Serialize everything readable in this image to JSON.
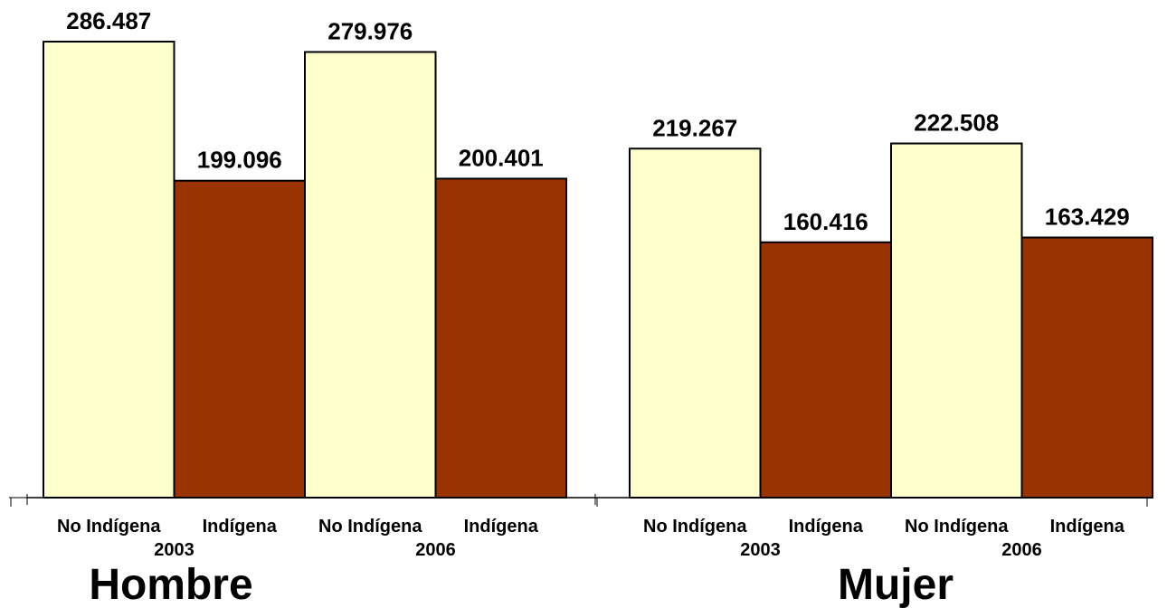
{
  "chart_data": {
    "type": "bar",
    "title": "",
    "xlabel": "",
    "ylabel": "",
    "ylim": [
      0,
      300000
    ],
    "grid": false,
    "legend": "none",
    "colors": {
      "No Indígena": "#ffffcc",
      "Indígena": "#993300",
      "outline": "#000000"
    },
    "groups": [
      {
        "label": "Hombre",
        "years": [
          {
            "year": "2003",
            "bars": [
              {
                "category": "No Indígena",
                "value": 286487,
                "label": "286.487"
              },
              {
                "category": "Indígena",
                "value": 199096,
                "label": "199.096"
              }
            ]
          },
          {
            "year": "2006",
            "bars": [
              {
                "category": "No Indígena",
                "value": 279976,
                "label": "279.976"
              },
              {
                "category": "Indígena",
                "value": 200401,
                "label": "200.401"
              }
            ]
          }
        ]
      },
      {
        "label": "Mujer",
        "years": [
          {
            "year": "2003",
            "bars": [
              {
                "category": "No Indígena",
                "value": 219267,
                "label": "219.267"
              },
              {
                "category": "Indígena",
                "value": 160416,
                "label": "160.416"
              }
            ]
          },
          {
            "year": "2006",
            "bars": [
              {
                "category": "No Indígena",
                "value": 222508,
                "label": "222.508"
              },
              {
                "category": "Indígena",
                "value": 163429,
                "label": "163.429"
              }
            ]
          }
        ]
      }
    ]
  }
}
